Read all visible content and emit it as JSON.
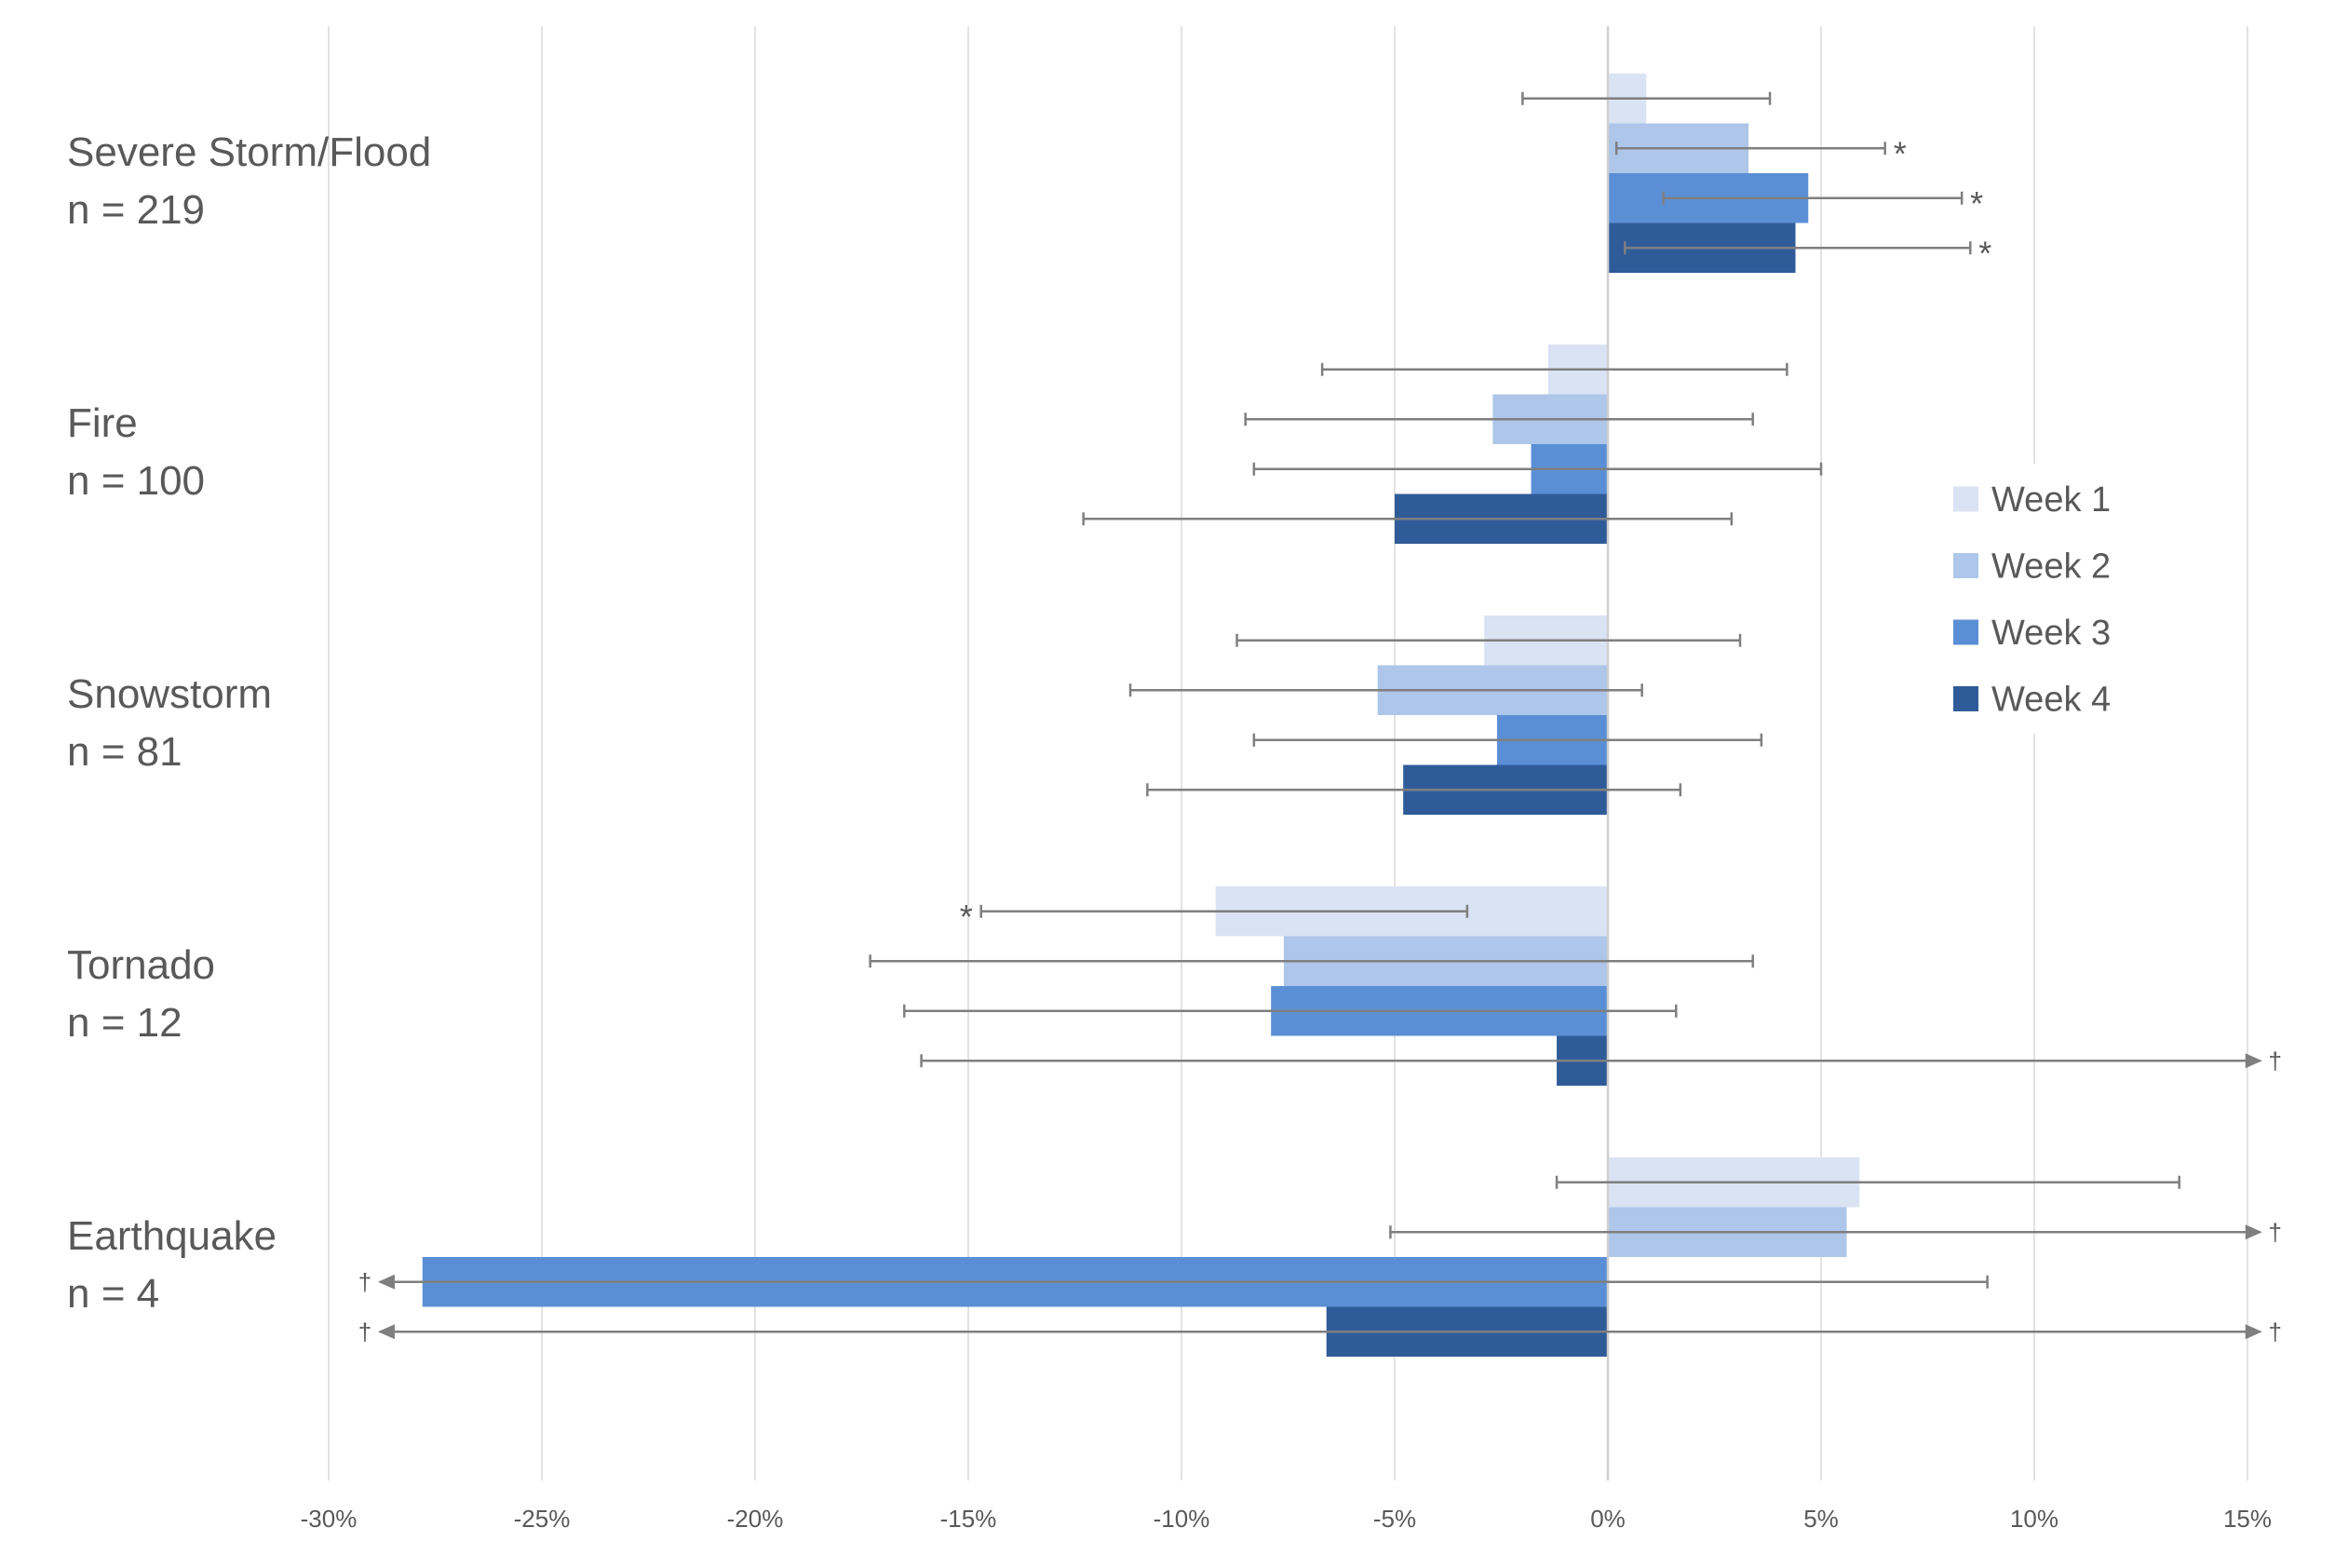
{
  "chart_data": {
    "type": "bar",
    "orientation": "horizontal",
    "title": "",
    "xlabel": "",
    "ylabel": "",
    "xlim": [
      -0.3,
      0.15
    ],
    "x_ticks": [
      -0.3,
      -0.25,
      -0.2,
      -0.15,
      -0.1,
      -0.05,
      0,
      0.05,
      0.1,
      0.15
    ],
    "x_tick_labels": [
      "-30%",
      "-25%",
      "-20%",
      "-15%",
      "-10%",
      "-5%",
      "0%",
      "5%",
      "10%",
      "15%"
    ],
    "grid": "vertical",
    "legend_position": "right",
    "categories": [
      {
        "name": "Severe Storm/Flood",
        "n_label": "n = 219"
      },
      {
        "name": "Fire",
        "n_label": "n = 100"
      },
      {
        "name": "Snowstorm",
        "n_label": "n = 81"
      },
      {
        "name": "Tornado",
        "n_label": "n = 12"
      },
      {
        "name": "Earthquake",
        "n_label": "n = 4"
      }
    ],
    "series": [
      {
        "name": "Week 1",
        "color": "#dae3f3",
        "values": [
          0.009,
          -0.014,
          -0.029,
          -0.092,
          0.059
        ],
        "ci_low": [
          -0.02,
          -0.067,
          -0.087,
          -0.147,
          -0.012
        ],
        "ci_high": [
          0.038,
          0.042,
          0.031,
          -0.033,
          0.134
        ],
        "ci_low_clipped": [
          false,
          false,
          false,
          false,
          false
        ],
        "ci_high_clipped": [
          false,
          false,
          false,
          false,
          false
        ],
        "significant": [
          false,
          false,
          false,
          true,
          false
        ]
      },
      {
        "name": "Week 2",
        "color": "#adc6e9",
        "values": [
          0.033,
          -0.027,
          -0.054,
          -0.076,
          0.056
        ],
        "ci_low": [
          0.002,
          -0.085,
          -0.112,
          -0.173,
          -0.051
        ],
        "ci_high": [
          0.065,
          0.034,
          0.008,
          0.034,
          0.153
        ],
        "ci_low_clipped": [
          false,
          false,
          false,
          false,
          false
        ],
        "ci_high_clipped": [
          false,
          false,
          false,
          false,
          true
        ],
        "significant": [
          true,
          false,
          false,
          false,
          false
        ]
      },
      {
        "name": "Week 3",
        "color": "#5b8fd5",
        "values": [
          0.047,
          -0.018,
          -0.026,
          -0.079,
          -0.278
        ],
        "ci_low": [
          0.013,
          -0.083,
          -0.083,
          -0.165,
          -0.288
        ],
        "ci_high": [
          0.083,
          0.05,
          0.036,
          0.016,
          0.089
        ],
        "ci_low_clipped": [
          false,
          false,
          false,
          false,
          true
        ],
        "ci_high_clipped": [
          false,
          false,
          false,
          false,
          false
        ],
        "significant": [
          true,
          false,
          false,
          false,
          false
        ]
      },
      {
        "name": "Week 4",
        "color": "#2f5c99",
        "values": [
          0.044,
          -0.05,
          -0.048,
          -0.012,
          -0.066
        ],
        "ci_low": [
          0.004,
          -0.123,
          -0.108,
          -0.161,
          -0.288
        ],
        "ci_high": [
          0.085,
          0.029,
          0.017,
          0.153,
          0.153
        ],
        "ci_low_clipped": [
          false,
          false,
          false,
          false,
          true
        ],
        "ci_high_clipped": [
          false,
          false,
          false,
          true,
          true
        ],
        "significant": [
          true,
          false,
          false,
          false,
          false
        ]
      }
    ],
    "annotations": {
      "significance_marker": "*",
      "clipped_marker": "†"
    }
  }
}
